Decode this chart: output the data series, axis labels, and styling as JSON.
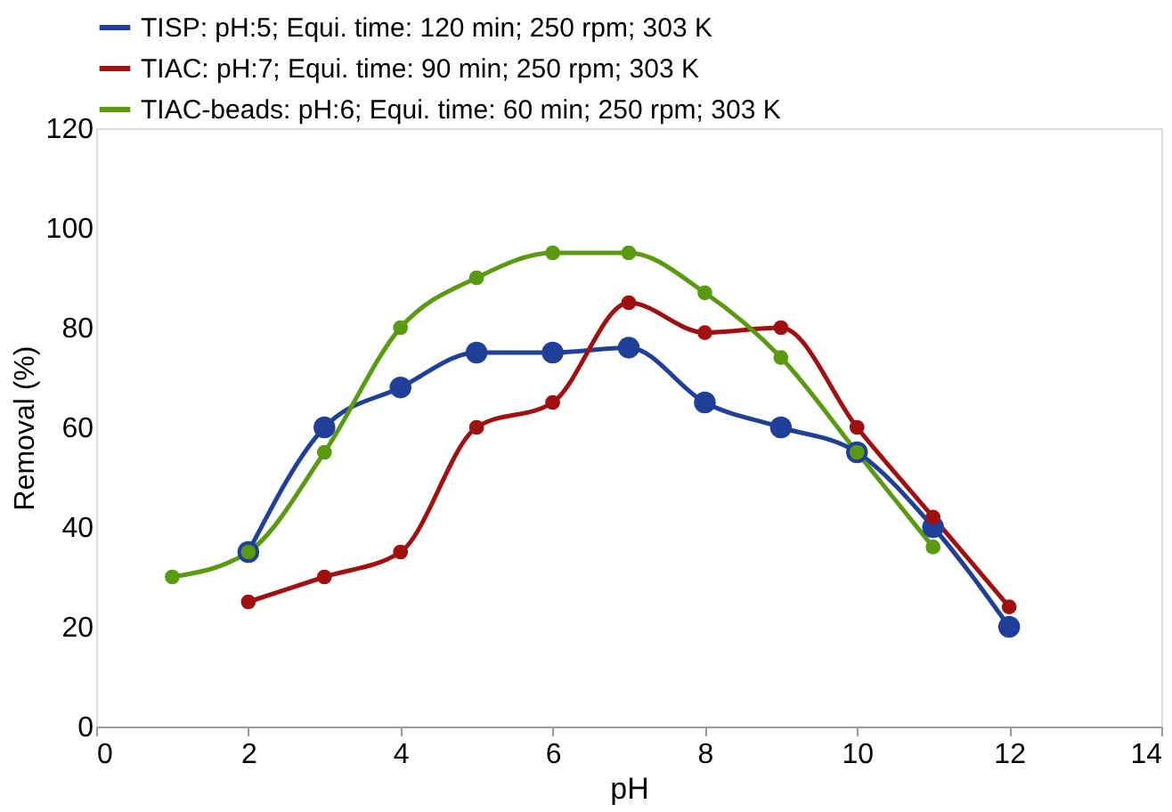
{
  "chart_data": {
    "type": "line",
    "xlabel": "pH",
    "ylabel": "Removal (%)",
    "xlim": [
      0,
      14
    ],
    "xticks": [
      0,
      2,
      4,
      6,
      8,
      10,
      12,
      14
    ],
    "ylim": [
      0,
      120
    ],
    "yticks": [
      0,
      20,
      40,
      60,
      80,
      100,
      120
    ],
    "grid": false,
    "legend": "top",
    "marker": "circle",
    "line_style": "solid",
    "series": [
      {
        "name": "TISP: pH:5; Equi. time: 120 min; 250 rpm; 303 K",
        "color": "#1f3f99",
        "x": [
          2,
          3,
          4,
          5,
          6,
          7,
          8,
          9,
          10,
          11,
          12
        ],
        "values": [
          35,
          60,
          68,
          75,
          75,
          76,
          65,
          60,
          55,
          40,
          20
        ]
      },
      {
        "name": "TIAC: pH:7; Equi. time: 90 min; 250 rpm; 303 K",
        "color": "#a01010",
        "x": [
          2,
          3,
          4,
          5,
          6,
          7,
          8,
          9,
          10,
          11,
          12
        ],
        "values": [
          25,
          30,
          35,
          60,
          65,
          85,
          79,
          80,
          60,
          42,
          24
        ]
      },
      {
        "name": "TIAC-beads: pH:6; Equi. time: 60 min; 250 rpm; 303 K",
        "color": "#5a9a10",
        "x": [
          1,
          2,
          3,
          4,
          5,
          6,
          7,
          8,
          9,
          10,
          11
        ],
        "values": [
          30,
          35,
          55,
          80,
          90,
          95,
          95,
          87,
          74,
          55,
          36
        ]
      }
    ]
  }
}
